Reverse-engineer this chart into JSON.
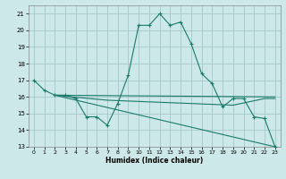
{
  "title": "",
  "xlabel": "Humidex (Indice chaleur)",
  "ylabel": "",
  "bg_color": "#cce8e8",
  "grid_color": "#aacccc",
  "line_color": "#1a7a6a",
  "xlim": [
    -0.5,
    23.5
  ],
  "ylim": [
    13,
    21.5
  ],
  "xticks": [
    0,
    1,
    2,
    3,
    4,
    5,
    6,
    7,
    8,
    9,
    10,
    11,
    12,
    13,
    14,
    15,
    16,
    17,
    18,
    19,
    20,
    21,
    22,
    23
  ],
  "yticks": [
    13,
    14,
    15,
    16,
    17,
    18,
    19,
    20,
    21
  ],
  "line1": {
    "x": [
      0,
      1,
      2,
      3,
      4,
      5,
      6,
      7,
      8,
      9,
      10,
      11,
      12,
      13,
      14,
      15,
      16,
      17,
      18,
      19,
      20,
      21,
      22,
      23
    ],
    "y": [
      17.0,
      16.4,
      16.1,
      16.1,
      15.9,
      14.8,
      14.8,
      14.3,
      15.6,
      17.3,
      20.3,
      20.3,
      21.0,
      20.3,
      20.5,
      19.2,
      17.4,
      16.8,
      15.4,
      15.9,
      15.9,
      14.8,
      14.7,
      13.0
    ]
  },
  "line2": {
    "x": [
      2,
      23
    ],
    "y": [
      16.1,
      16.0
    ]
  },
  "line3": {
    "x": [
      2,
      7,
      19,
      22,
      23
    ],
    "y": [
      16.1,
      15.8,
      15.5,
      15.9,
      15.9
    ]
  },
  "line4": {
    "x": [
      2,
      23
    ],
    "y": [
      16.1,
      13.0
    ]
  }
}
